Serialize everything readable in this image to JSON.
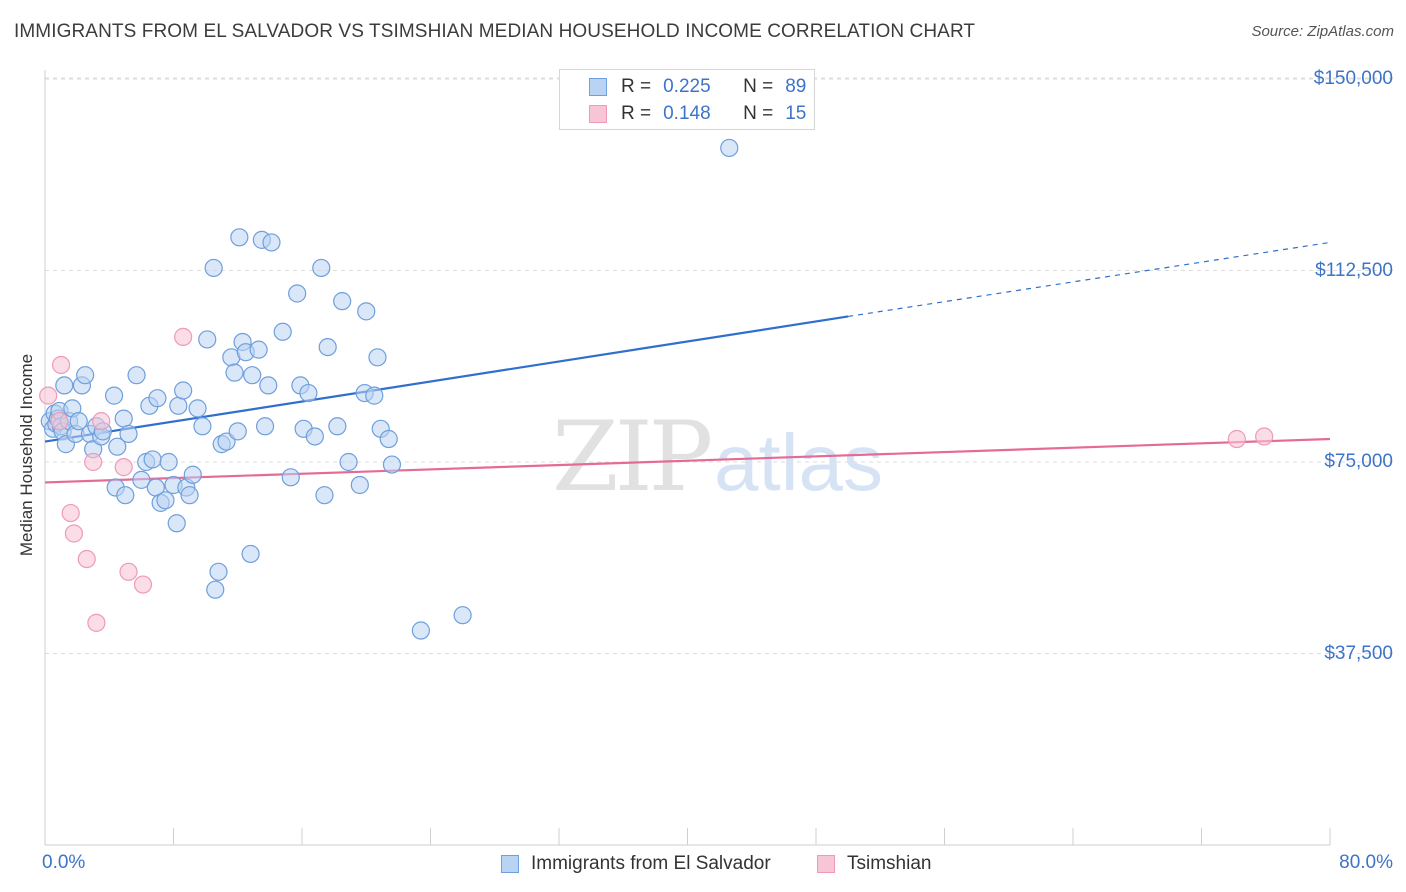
{
  "title": "IMMIGRANTS FROM EL SALVADOR VS TSIMSHIAN MEDIAN HOUSEHOLD INCOME CORRELATION CHART",
  "source": "Source: ZipAtlas.com",
  "watermark": {
    "zip": "ZIP",
    "atlas": "atlas"
  },
  "colors": {
    "blue": "#3d74c9",
    "blue_fill": "#b9d3f3",
    "blue_stroke": "#6f9fdc",
    "blue_line": "#2f6fce",
    "pink": "#e87aa0",
    "pink_fill": "#f6c6d6",
    "pink_stroke": "#ee9ab8",
    "pink_line": "#e56b97",
    "grid": "#dcdcdc"
  },
  "legend_top": [
    {
      "r_label": "R =",
      "r_value": "0.225",
      "n_label": "N =",
      "n_value": "89"
    },
    {
      "r_label": "R =",
      "r_value": "0.148",
      "n_label": "N =",
      "n_value": "15"
    }
  ],
  "legend_bottom": [
    {
      "label": "Immigrants from El Salvador"
    },
    {
      "label": "Tsimshian"
    }
  ],
  "chart_data": {
    "type": "scatter",
    "title": "IMMIGRANTS FROM EL SALVADOR VS TSIMSHIAN MEDIAN HOUSEHOLD INCOME CORRELATION CHART",
    "xlabel": "",
    "ylabel": "Median Household Income",
    "xlim": [
      0,
      80
    ],
    "ylim": [
      0,
      155000
    ],
    "x_tick_labels": {
      "left": "0.0%",
      "right": "80.0%"
    },
    "y_ticks": [
      {
        "value": 150000,
        "label": "$150,000"
      },
      {
        "value": 112500,
        "label": "$112,500"
      },
      {
        "value": 75000,
        "label": "$75,000"
      },
      {
        "value": 37500,
        "label": "$37,500"
      }
    ],
    "series": [
      {
        "name": "Immigrants from El Salvador",
        "R": 0.225,
        "N": 89,
        "trend": {
          "x0": 0,
          "y0": 79000,
          "x1": 50,
          "y1": 103500,
          "dash_to_x": 80,
          "dash_to_y": 118000
        },
        "points": [
          [
            0.3,
            83000
          ],
          [
            0.5,
            81500
          ],
          [
            0.6,
            84500
          ],
          [
            0.7,
            82500
          ],
          [
            0.8,
            83500
          ],
          [
            0.9,
            85000
          ],
          [
            1.0,
            82000
          ],
          [
            1.1,
            81000
          ],
          [
            1.2,
            90000
          ],
          [
            1.3,
            78500
          ],
          [
            1.5,
            83000
          ],
          [
            1.7,
            85500
          ],
          [
            1.9,
            80500
          ],
          [
            2.1,
            83000
          ],
          [
            2.3,
            90000
          ],
          [
            2.5,
            92000
          ],
          [
            2.8,
            80500
          ],
          [
            3.0,
            77500
          ],
          [
            3.2,
            82000
          ],
          [
            3.5,
            80000
          ],
          [
            3.6,
            81000
          ],
          [
            4.3,
            88000
          ],
          [
            4.4,
            70000
          ],
          [
            4.5,
            78000
          ],
          [
            4.9,
            83500
          ],
          [
            5.0,
            68500
          ],
          [
            5.2,
            80500
          ],
          [
            5.7,
            92000
          ],
          [
            6.0,
            71500
          ],
          [
            6.3,
            75000
          ],
          [
            6.5,
            86000
          ],
          [
            6.7,
            75500
          ],
          [
            6.9,
            70000
          ],
          [
            7.0,
            87500
          ],
          [
            7.2,
            67000
          ],
          [
            7.5,
            67500
          ],
          [
            7.7,
            75000
          ],
          [
            8.0,
            70500
          ],
          [
            8.2,
            63000
          ],
          [
            8.3,
            86000
          ],
          [
            8.6,
            89000
          ],
          [
            8.8,
            70000
          ],
          [
            9.0,
            68500
          ],
          [
            9.2,
            72500
          ],
          [
            9.5,
            85500
          ],
          [
            9.8,
            82000
          ],
          [
            10.1,
            99000
          ],
          [
            10.5,
            113000
          ],
          [
            10.6,
            50000
          ],
          [
            10.8,
            53500
          ],
          [
            11.0,
            78500
          ],
          [
            11.3,
            79000
          ],
          [
            11.6,
            95500
          ],
          [
            11.8,
            92500
          ],
          [
            12.0,
            81000
          ],
          [
            12.1,
            119000
          ],
          [
            12.3,
            98500
          ],
          [
            12.5,
            96500
          ],
          [
            12.8,
            57000
          ],
          [
            12.9,
            92000
          ],
          [
            13.3,
            97000
          ],
          [
            13.5,
            118500
          ],
          [
            13.7,
            82000
          ],
          [
            13.9,
            90000
          ],
          [
            14.1,
            118000
          ],
          [
            14.8,
            100500
          ],
          [
            15.3,
            72000
          ],
          [
            15.7,
            108000
          ],
          [
            15.9,
            90000
          ],
          [
            16.1,
            81500
          ],
          [
            16.4,
            88500
          ],
          [
            16.8,
            80000
          ],
          [
            17.2,
            113000
          ],
          [
            17.4,
            68500
          ],
          [
            17.6,
            97500
          ],
          [
            18.2,
            82000
          ],
          [
            18.5,
            106500
          ],
          [
            18.9,
            75000
          ],
          [
            19.6,
            70500
          ],
          [
            19.9,
            88500
          ],
          [
            20.0,
            104500
          ],
          [
            20.5,
            88000
          ],
          [
            20.7,
            95500
          ],
          [
            20.9,
            81500
          ],
          [
            21.4,
            79500
          ],
          [
            21.6,
            74500
          ],
          [
            23.4,
            42000
          ],
          [
            26.0,
            45000
          ],
          [
            42.6,
            136500
          ]
        ]
      },
      {
        "name": "Tsimshian",
        "R": 0.148,
        "N": 15,
        "trend": {
          "x0": 0,
          "y0": 71000,
          "x1": 80,
          "y1": 79500
        },
        "points": [
          [
            0.2,
            88000
          ],
          [
            0.9,
            83000
          ],
          [
            1.0,
            94000
          ],
          [
            1.6,
            65000
          ],
          [
            1.8,
            61000
          ],
          [
            2.6,
            56000
          ],
          [
            3.0,
            75000
          ],
          [
            3.2,
            43500
          ],
          [
            3.5,
            83000
          ],
          [
            4.9,
            74000
          ],
          [
            5.2,
            53500
          ],
          [
            6.1,
            51000
          ],
          [
            8.6,
            99500
          ],
          [
            74.2,
            79500
          ],
          [
            75.9,
            80000
          ]
        ]
      }
    ]
  }
}
